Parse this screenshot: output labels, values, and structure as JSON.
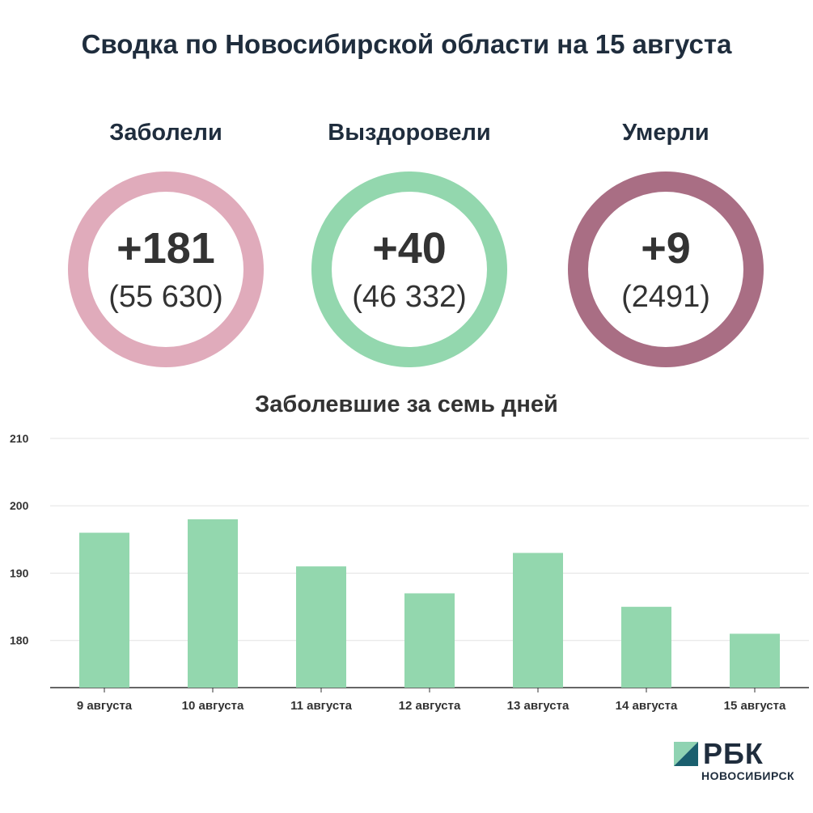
{
  "title": "Сводка по Новосибирской области на 15 августа",
  "stats": [
    {
      "label": "Заболели",
      "delta": "+181",
      "total": "(55 630)",
      "color": "#e0abbb"
    },
    {
      "label": "Выздоровели",
      "delta": "+40",
      "total": "(46 332)",
      "color": "#93d7ae"
    },
    {
      "label": "Умерли",
      "delta": "+9",
      "total": "(2491)",
      "color": "#a96e84"
    }
  ],
  "chart_data": {
    "type": "bar",
    "title": "Заболевшие за семь дней",
    "categories": [
      "9 августа",
      "10 августа",
      "11 августа",
      "12 августа",
      "13 августа",
      "14 августа",
      "15 августа"
    ],
    "values": [
      196,
      198,
      191,
      187,
      193,
      185,
      181
    ],
    "ylim": [
      173,
      210
    ],
    "yticks": [
      180,
      190,
      200,
      210
    ],
    "grid": true,
    "bar_color": "#93d7ae"
  },
  "logo": {
    "name": "РБК",
    "sub": "НОВОСИБИРСК",
    "colors": [
      "#1a5f6e",
      "#8fd3b2"
    ]
  }
}
